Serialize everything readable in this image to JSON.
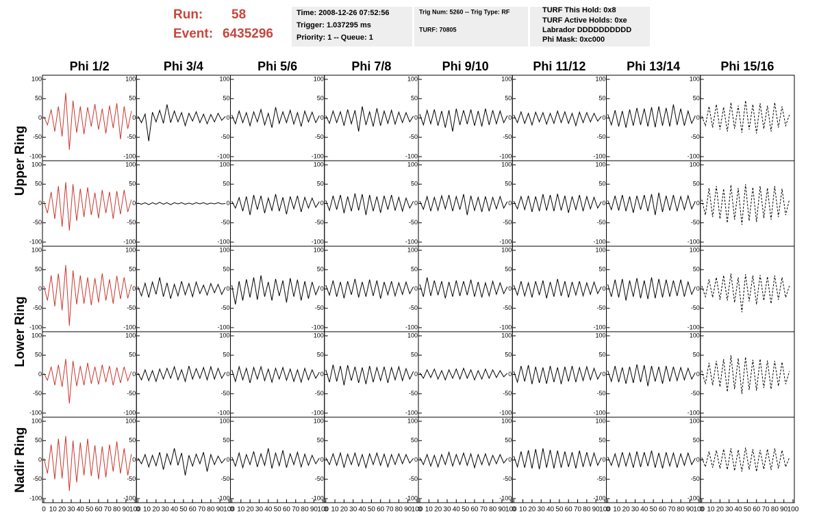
{
  "header": {
    "run_label": "Run:",
    "run": "58",
    "event_label": "Event:",
    "event": "6435296",
    "box1": [
      "Time: 2008-12-26 07:52:56",
      "Trigger: 1.037295 ms",
      "Priority: 1 -- Queue: 1"
    ],
    "box2": [
      "Trig Num: 5260 -- Trig Type: RF",
      "TURF: 70805"
    ],
    "box3": [
      "TURF This Hold: 0x8",
      "TURF Active Holds: 0xe",
      "Labrador DDDDDDDDDD",
      "Phi Mask: 0xc000"
    ]
  },
  "chart_data": {
    "type": "line",
    "columns": [
      "Phi 1/2",
      "Phi 3/4",
      "Phi 5/6",
      "Phi 7/8",
      "Phi 9/10",
      "Phi 11/12",
      "Phi 13/14",
      "Phi 15/16"
    ],
    "row_labels": [
      "Upper Ring",
      "Lower Ring",
      "Nadir Ring"
    ],
    "xlim": [
      0,
      100
    ],
    "xticks": [
      0,
      10,
      20,
      30,
      40,
      50,
      60,
      70,
      80,
      90,
      100
    ],
    "ylim": [
      -100,
      100
    ],
    "yticks": [
      100,
      50,
      0,
      -50,
      -100
    ],
    "x": [
      0,
      4,
      8,
      12,
      16,
      20,
      24,
      28,
      32,
      36,
      40,
      44,
      48,
      52,
      56,
      60,
      64,
      68,
      72,
      76,
      80,
      84,
      88,
      92,
      96
    ],
    "series": [
      {
        "color": "#c8372d",
        "dashed": false,
        "rows": [
          [
            4,
            -18,
            22,
            -35,
            30,
            -48,
            65,
            -82,
            45,
            -38,
            30,
            -42,
            28,
            -22,
            36,
            -30,
            24,
            -40,
            32,
            -26,
            38,
            -55,
            30,
            -28,
            18
          ],
          [
            6,
            -25,
            30,
            -40,
            45,
            -60,
            55,
            -70,
            50,
            -45,
            38,
            -35,
            42,
            -30,
            28,
            -38,
            35,
            -25,
            30,
            -40,
            32,
            -28,
            35,
            -22,
            10
          ],
          [
            8,
            -30,
            35,
            -45,
            40,
            -55,
            62,
            -95,
            48,
            -40,
            35,
            -38,
            30,
            -42,
            28,
            -35,
            40,
            -30,
            25,
            -38,
            34,
            -26,
            30,
            -24,
            12
          ],
          [
            3,
            -15,
            20,
            -28,
            25,
            -32,
            40,
            -75,
            35,
            -30,
            22,
            -28,
            30,
            -24,
            20,
            -26,
            25,
            -20,
            22,
            -28,
            18,
            -22,
            20,
            -16,
            8
          ],
          [
            5,
            -35,
            40,
            -50,
            55,
            -48,
            62,
            -80,
            50,
            -58,
            45,
            -40,
            55,
            -42,
            38,
            -50,
            35,
            -45,
            40,
            -30,
            48,
            -35,
            30,
            -40,
            15
          ]
        ]
      },
      {
        "color": "#000000",
        "dashed": false,
        "rows": [
          [
            5,
            -12,
            10,
            -60,
            15,
            -10,
            20,
            -14,
            35,
            -12,
            18,
            -10,
            14,
            -20,
            12,
            -8,
            16,
            -12,
            10,
            -15,
            9,
            -10,
            12,
            -6,
            4
          ],
          [
            1,
            -2,
            2,
            -3,
            2,
            -2,
            3,
            -2,
            2,
            -3,
            2,
            -1,
            2,
            -2,
            1,
            -2,
            2,
            -1,
            2,
            -2,
            1,
            -1,
            2,
            -1,
            0
          ],
          [
            6,
            -18,
            15,
            -22,
            18,
            -14,
            30,
            -20,
            16,
            -25,
            12,
            -18,
            20,
            -15,
            14,
            -20,
            18,
            -12,
            10,
            -16,
            14,
            -10,
            12,
            -14,
            5
          ],
          [
            4,
            -14,
            12,
            -16,
            10,
            -18,
            14,
            -12,
            16,
            -10,
            20,
            -14,
            12,
            -18,
            22,
            -12,
            15,
            -10,
            18,
            -14,
            20,
            -12,
            16,
            -10,
            6
          ],
          [
            5,
            -10,
            14,
            -18,
            12,
            -15,
            20,
            -25,
            16,
            -12,
            30,
            -14,
            18,
            -40,
            12,
            -16,
            15,
            -10,
            20,
            -30,
            14,
            -12,
            10,
            -8,
            4
          ]
        ]
      },
      {
        "color": "#000000",
        "dashed": false,
        "rows": [
          [
            8,
            -15,
            18,
            -12,
            14,
            -20,
            16,
            -10,
            22,
            -18,
            12,
            -25,
            28,
            -14,
            16,
            -12,
            20,
            -16,
            14,
            -22,
            18,
            -10,
            15,
            -12,
            6
          ],
          [
            6,
            -12,
            15,
            -20,
            18,
            -30,
            22,
            -16,
            20,
            -25,
            14,
            -18,
            24,
            -20,
            16,
            -28,
            18,
            -14,
            20,
            -22,
            16,
            -12,
            14,
            -10,
            5
          ],
          [
            10,
            -40,
            20,
            -30,
            25,
            -22,
            30,
            -28,
            35,
            -20,
            18,
            -30,
            26,
            -18,
            22,
            -35,
            28,
            -20,
            24,
            -30,
            20,
            -25,
            18,
            -15,
            8
          ],
          [
            12,
            -18,
            20,
            -14,
            16,
            -22,
            18,
            -12,
            20,
            -16,
            14,
            -20,
            16,
            -12,
            18,
            -15,
            14,
            -18,
            12,
            -20,
            16,
            -14,
            12,
            -10,
            6
          ],
          [
            8,
            -16,
            18,
            -20,
            14,
            -12,
            22,
            -18,
            16,
            -14,
            30,
            -22,
            18,
            -15,
            25,
            -20,
            16,
            -12,
            20,
            -18,
            15,
            -14,
            12,
            -10,
            5
          ]
        ]
      },
      {
        "color": "#000000",
        "dashed": false,
        "rows": [
          [
            6,
            -14,
            18,
            -12,
            16,
            -20,
            22,
            -15,
            20,
            -35,
            30,
            -18,
            16,
            -22,
            25,
            -20,
            18,
            -14,
            20,
            -16,
            15,
            -12,
            14,
            -10,
            5
          ],
          [
            8,
            -18,
            20,
            -16,
            22,
            -25,
            18,
            -20,
            26,
            -18,
            24,
            -30,
            22,
            -20,
            18,
            -24,
            20,
            -16,
            22,
            -18,
            16,
            -20,
            14,
            -12,
            6
          ],
          [
            10,
            -16,
            22,
            -20,
            18,
            -24,
            20,
            -15,
            26,
            -22,
            18,
            -20,
            24,
            -18,
            22,
            -25,
            18,
            -15,
            20,
            -18,
            16,
            -14,
            18,
            -12,
            6
          ],
          [
            12,
            -20,
            25,
            -18,
            22,
            -28,
            24,
            -16,
            20,
            -22,
            18,
            -25,
            22,
            -20,
            18,
            -16,
            20,
            -22,
            18,
            -14,
            20,
            -16,
            15,
            -12,
            8
          ],
          [
            6,
            -12,
            16,
            -14,
            18,
            -20,
            15,
            -12,
            18,
            -16,
            14,
            -20,
            16,
            -12,
            18,
            -14,
            15,
            -18,
            14,
            -12,
            16,
            -10,
            14,
            -8,
            4
          ]
        ]
      },
      {
        "color": "#000000",
        "dashed": false,
        "rows": [
          [
            10,
            -18,
            20,
            -15,
            22,
            -20,
            18,
            -25,
            20,
            -35,
            24,
            -18,
            20,
            -16,
            22,
            -20,
            18,
            -22,
            24,
            -18,
            20,
            -15,
            18,
            -12,
            6
          ],
          [
            6,
            -15,
            18,
            -20,
            16,
            -18,
            20,
            -14,
            22,
            -20,
            18,
            -16,
            24,
            -30,
            20,
            -18,
            16,
            -22,
            18,
            -20,
            16,
            -14,
            18,
            -12,
            5
          ],
          [
            12,
            -20,
            30,
            -18,
            22,
            -16,
            20,
            -24,
            18,
            -20,
            22,
            -18,
            20,
            -16,
            24,
            -20,
            18,
            -22,
            16,
            -18,
            20,
            -14,
            16,
            -12,
            6
          ],
          [
            4,
            -10,
            12,
            -8,
            14,
            -12,
            10,
            -14,
            12,
            -10,
            14,
            -12,
            16,
            -10,
            12,
            -14,
            10,
            -12,
            14,
            -10,
            12,
            -8,
            10,
            -6,
            3
          ],
          [
            6,
            -12,
            14,
            -16,
            12,
            -18,
            14,
            -12,
            20,
            -16,
            14,
            -12,
            18,
            -14,
            16,
            -20,
            14,
            -12,
            16,
            -14,
            12,
            -10,
            14,
            -8,
            4
          ]
        ]
      },
      {
        "color": "#000000",
        "dashed": false,
        "rows": [
          [
            8,
            -12,
            16,
            -14,
            12,
            -18,
            15,
            -10,
            14,
            -16,
            12,
            -14,
            18,
            -12,
            16,
            -14,
            12,
            -20,
            15,
            -12,
            14,
            -10,
            12,
            -8,
            4
          ],
          [
            6,
            -14,
            18,
            -16,
            20,
            -22,
            18,
            -20,
            24,
            -18,
            22,
            -20,
            25,
            -18,
            20,
            -24,
            18,
            -16,
            22,
            -20,
            18,
            -14,
            16,
            -12,
            5
          ],
          [
            10,
            -16,
            20,
            -18,
            16,
            -22,
            20,
            -16,
            22,
            -24,
            18,
            -20,
            26,
            -18,
            20,
            -22,
            18,
            -16,
            20,
            -18,
            16,
            -14,
            18,
            -12,
            6
          ],
          [
            8,
            -20,
            22,
            -18,
            24,
            -25,
            20,
            -22,
            18,
            -24,
            22,
            -20,
            18,
            -25,
            20,
            -18,
            22,
            -20,
            18,
            -16,
            20,
            -14,
            16,
            -12,
            6
          ],
          [
            10,
            -18,
            22,
            -20,
            25,
            -22,
            28,
            -24,
            30,
            -20,
            26,
            -22,
            24,
            -20,
            22,
            -18,
            20,
            -22,
            24,
            -18,
            20,
            -16,
            18,
            -14,
            6
          ]
        ]
      },
      {
        "color": "#000000",
        "dashed": false,
        "rows": [
          [
            10,
            -18,
            20,
            -22,
            18,
            -25,
            22,
            -20,
            26,
            -18,
            24,
            -22,
            28,
            -24,
            30,
            -20,
            26,
            -22,
            35,
            -18,
            24,
            -20,
            18,
            -14,
            6
          ],
          [
            8,
            -16,
            20,
            -18,
            22,
            -20,
            18,
            -24,
            20,
            -16,
            22,
            -20,
            24,
            -30,
            28,
            -22,
            20,
            -18,
            22,
            -20,
            18,
            -16,
            20,
            -14,
            6
          ],
          [
            12,
            -20,
            24,
            -22,
            26,
            -30,
            22,
            -20,
            28,
            -24,
            22,
            -26,
            30,
            -24,
            26,
            -22,
            24,
            -20,
            22,
            -18,
            24,
            -20,
            18,
            -14,
            6
          ],
          [
            10,
            -18,
            22,
            -20,
            18,
            -24,
            20,
            -22,
            26,
            -20,
            24,
            -30,
            22,
            -18,
            20,
            -24,
            22,
            -18,
            20,
            -16,
            18,
            -14,
            16,
            -12,
            5
          ],
          [
            8,
            -14,
            16,
            -18,
            20,
            -16,
            18,
            -20,
            22,
            -18,
            20,
            -16,
            24,
            -20,
            18,
            -22,
            20,
            -16,
            18,
            -20,
            16,
            -14,
            18,
            -12,
            5
          ]
        ]
      },
      {
        "color": "#000000",
        "dashed": true,
        "rows": [
          [
            5,
            -20,
            30,
            -25,
            35,
            -30,
            28,
            -35,
            40,
            -28,
            32,
            -38,
            45,
            -30,
            35,
            -40,
            38,
            -28,
            32,
            -35,
            40,
            -25,
            30,
            -20,
            8
          ],
          [
            10,
            -30,
            40,
            -35,
            45,
            -40,
            38,
            -50,
            48,
            -42,
            40,
            -55,
            50,
            -45,
            42,
            -48,
            45,
            -38,
            40,
            -42,
            45,
            -35,
            38,
            -30,
            10
          ],
          [
            8,
            -20,
            25,
            -22,
            30,
            -28,
            35,
            -30,
            40,
            -35,
            30,
            -60,
            38,
            -32,
            35,
            -40,
            36,
            -30,
            32,
            -38,
            35,
            -28,
            30,
            -22,
            8
          ],
          [
            10,
            -25,
            30,
            -28,
            35,
            -32,
            40,
            -45,
            50,
            -38,
            42,
            -50,
            45,
            -40,
            38,
            -42,
            40,
            -35,
            36,
            -38,
            35,
            -30,
            32,
            -25,
            8
          ],
          [
            6,
            -18,
            22,
            -20,
            25,
            -22,
            28,
            -25,
            30,
            -28,
            26,
            -30,
            32,
            -25,
            28,
            -30,
            26,
            -24,
            28,
            -26,
            30,
            -22,
            25,
            -18,
            6
          ]
        ]
      }
    ]
  }
}
